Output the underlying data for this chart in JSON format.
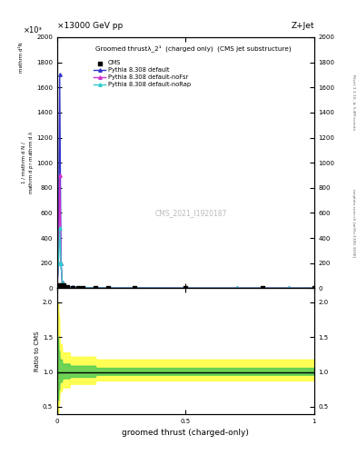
{
  "title_top": "×13000 GeV pp",
  "title_right": "Z+Jet",
  "plot_title": "Groomed thrustλ_2¹  (charged only)  (CMS jet substructure)",
  "xlabel": "groomed thrust (charged-only)",
  "ylabel_main_lines": [
    "mathrm d²N",
    "mathrm d pₜ mathrm d λ"
  ],
  "ylabel_ratio": "Ratio to CMS",
  "watermark": "CMS_2021_I1920187",
  "right_label_top": "Rivet 3.1.10, ≥ 3.4M events",
  "right_label_bottom": "mcplots.cern.ch [arXiv:1306.3436]",
  "ylim_main": [
    0,
    2000
  ],
  "ylim_ratio": [
    0.4,
    2.2
  ],
  "xlim": [
    0,
    1
  ],
  "ytick_main_vals": [
    0,
    200,
    400,
    600,
    800,
    1000,
    1200,
    1400,
    1600,
    1800,
    2000
  ],
  "ytick_main_labels": [
    "0",
    "200",
    "400",
    "600",
    "800",
    "1000",
    "1200",
    "1400",
    "1600",
    "1800",
    "2000"
  ],
  "ytick_ratio": [
    0.5,
    1.0,
    1.5,
    2.0
  ],
  "blue_line_x": [
    0.0,
    0.005,
    0.01,
    0.015,
    0.02,
    0.03,
    0.04,
    0.06,
    0.08,
    0.1,
    0.15,
    0.2,
    0.3,
    0.5,
    0.7,
    0.9,
    1.0
  ],
  "blue_line_y": [
    20,
    200,
    1700,
    200,
    45,
    20,
    12,
    7,
    5,
    4,
    3,
    2,
    2,
    1,
    1,
    1,
    1
  ],
  "magenta_line_x": [
    0.0,
    0.005,
    0.01,
    0.015,
    0.02,
    0.03,
    0.04,
    0.06,
    0.08,
    0.1,
    0.15,
    0.2,
    0.3,
    0.5,
    0.7,
    0.9,
    1.0
  ],
  "magenta_line_y": [
    20,
    200,
    900,
    200,
    45,
    20,
    12,
    7,
    5,
    4,
    3,
    2,
    2,
    1,
    1,
    1,
    1
  ],
  "cyan_line_x": [
    0.0,
    0.005,
    0.01,
    0.015,
    0.02,
    0.03,
    0.04,
    0.06,
    0.08,
    0.1,
    0.15,
    0.2,
    0.3,
    0.5,
    0.7,
    0.9,
    1.0
  ],
  "cyan_line_y": [
    20,
    200,
    480,
    200,
    45,
    20,
    12,
    7,
    5,
    4,
    3,
    2,
    2,
    1,
    1,
    1,
    1
  ],
  "cms_x": [
    0.005,
    0.015,
    0.025,
    0.04,
    0.06,
    0.08,
    0.1,
    0.15,
    0.2,
    0.3,
    0.5,
    0.8,
    1.0
  ],
  "cms_y": [
    25,
    25,
    25,
    10,
    6,
    4,
    3,
    3,
    2,
    2,
    1,
    1,
    1
  ],
  "blue_color": "#3333cc",
  "magenta_color": "#cc33cc",
  "cyan_color": "#33cccc",
  "cms_color": "#000000",
  "scale_label": "×10³"
}
